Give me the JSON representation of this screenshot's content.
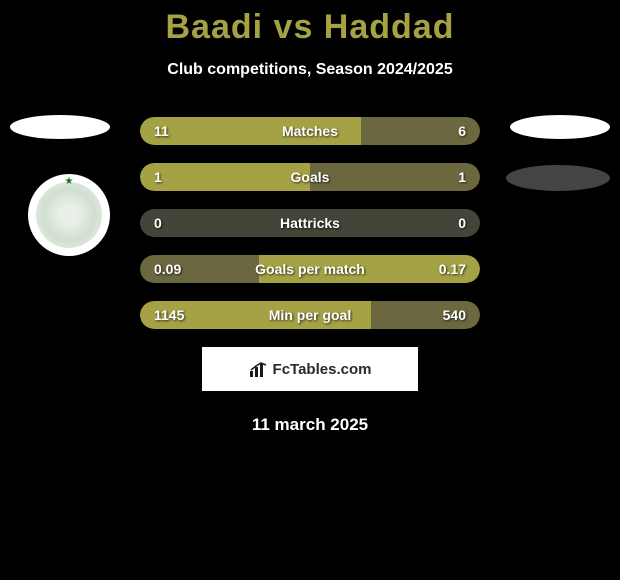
{
  "header": {
    "title": "Baadi vs Haddad",
    "subtitle": "Club competitions, Season 2024/2025"
  },
  "stats": [
    {
      "left_val": "11",
      "label": "Matches",
      "right_val": "6",
      "left_pct": 65,
      "right_pct": 35,
      "left_color": "#a5a145",
      "right_color": "#6b6840"
    },
    {
      "left_val": "1",
      "label": "Goals",
      "right_val": "1",
      "left_pct": 50,
      "right_pct": 50,
      "left_color": "#a5a145",
      "right_color": "#6b6840"
    },
    {
      "left_val": "0",
      "label": "Hattricks",
      "right_val": "0",
      "left_pct": 0,
      "right_pct": 0,
      "bg_color": "#444438"
    },
    {
      "left_val": "0.09",
      "label": "Goals per match",
      "right_val": "0.17",
      "left_pct": 35,
      "right_pct": 65,
      "left_color": "#6b6840",
      "right_color": "#a5a145"
    },
    {
      "left_val": "1145",
      "label": "Min per goal",
      "right_val": "540",
      "left_pct": 68,
      "right_pct": 32,
      "left_color": "#a5a145",
      "right_color": "#6b6840"
    }
  ],
  "branding": {
    "text": "FcTables.com"
  },
  "date": "11 march 2025",
  "badge": {
    "name": "raja-club-athletic-badge"
  }
}
